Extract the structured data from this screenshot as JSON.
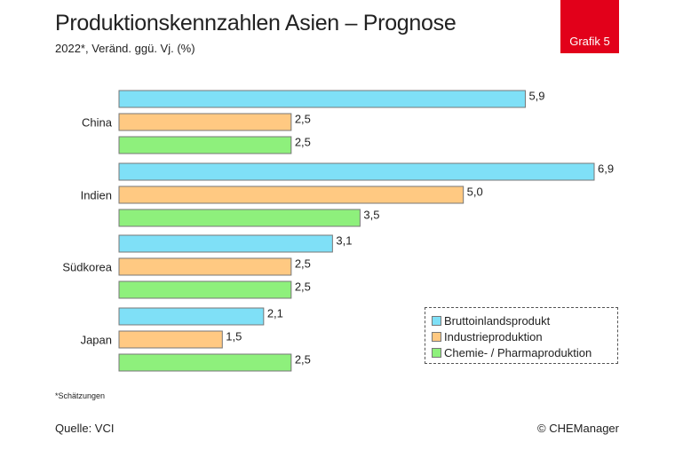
{
  "header": {
    "title": "Produktionskennzahlen Asien – Prognose",
    "subtitle": "2022*, Veränd. ggü. Vj. (%)",
    "badge": "Grafik 5"
  },
  "footer": {
    "footnote": "*Schätzungen",
    "source": "Quelle: VCI",
    "copyright": "© CHEManager"
  },
  "colors": {
    "badge": "#e2001a",
    "series": [
      "#7fe0f7",
      "#ffc982",
      "#8ef07c"
    ]
  },
  "chart_data": {
    "type": "bar",
    "orientation": "horizontal",
    "categories": [
      "China",
      "Indien",
      "Südkorea",
      "Japan"
    ],
    "series": [
      {
        "name": "Bruttoinlandsprodukt",
        "values": [
          5.9,
          6.9,
          3.1,
          2.1
        ],
        "labels": [
          "5,9",
          "6,9",
          "3,1",
          "2,1"
        ]
      },
      {
        "name": "Industrieproduktion",
        "values": [
          2.5,
          5.0,
          2.5,
          1.5
        ],
        "labels": [
          "2,5",
          "5,0",
          "2,5",
          "1,5"
        ]
      },
      {
        "name": "Chemie- / Pharmaproduktion",
        "values": [
          2.5,
          3.5,
          2.5,
          2.5
        ],
        "labels": [
          "2,5",
          "3,5",
          "2,5",
          "2,5"
        ]
      }
    ],
    "xlim": [
      0,
      6.9
    ],
    "grid": false,
    "legend_position": "bottom-right"
  }
}
